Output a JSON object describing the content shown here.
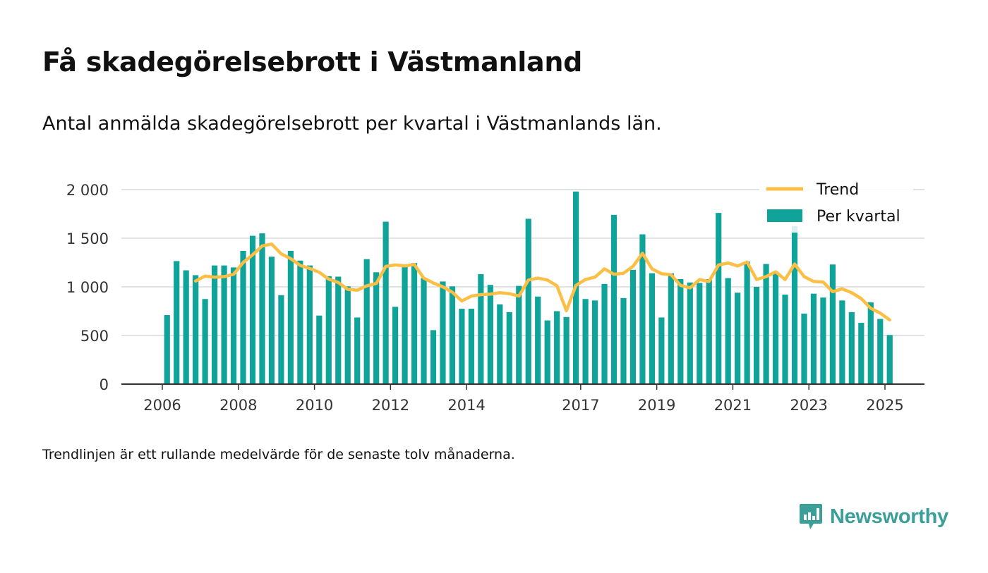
{
  "title": "Få skadegörelsebrott i Västmanland",
  "subtitle": "Antal anmälda skadegörelsebrott per kvartal i Västmanlands län.",
  "note": "Trendlinjen är ett rullande medelvärde för de senaste tolv månaderna.",
  "brand": {
    "name": "Newsworthy",
    "icon": "chart-speech-bubble-icon"
  },
  "colors": {
    "bars": "#0fa39a",
    "trend": "#fbbf45",
    "axis": "#333333",
    "grid": "#d9d9d9",
    "brand": "#3a9f98"
  },
  "chart_data": {
    "type": "bar",
    "xlabel": "",
    "ylabel": "",
    "ylim": [
      0,
      2000
    ],
    "yticks": [
      0,
      500,
      1000,
      1500,
      2000
    ],
    "ytick_labels": [
      "0",
      "500",
      "1 000",
      "1 500",
      "2 000"
    ],
    "xticks": [
      "2006",
      "2008",
      "2010",
      "2012",
      "2014",
      "2017",
      "2019",
      "2021",
      "2023",
      "2025"
    ],
    "grid": true,
    "legend_position": "top-right",
    "categories": [
      "2006 Q1",
      "2006 Q2",
      "2006 Q3",
      "2006 Q4",
      "2007 Q1",
      "2007 Q2",
      "2007 Q3",
      "2007 Q4",
      "2008 Q1",
      "2008 Q2",
      "2008 Q3",
      "2008 Q4",
      "2009 Q1",
      "2009 Q2",
      "2009 Q3",
      "2009 Q4",
      "2010 Q1",
      "2010 Q2",
      "2010 Q3",
      "2010 Q4",
      "2011 Q1",
      "2011 Q2",
      "2011 Q3",
      "2011 Q4",
      "2012 Q1",
      "2012 Q2",
      "2012 Q3",
      "2012 Q4",
      "2013 Q1",
      "2013 Q2",
      "2013 Q3",
      "2013 Q4",
      "2014 Q1",
      "2014 Q2",
      "2014 Q3",
      "2014 Q4",
      "2015 Q1",
      "2015 Q2",
      "2015 Q3",
      "2015 Q4",
      "2016 Q1",
      "2016 Q2",
      "2016 Q3",
      "2016 Q4",
      "2017 Q1",
      "2017 Q2",
      "2017 Q3",
      "2017 Q4",
      "2018 Q1",
      "2018 Q2",
      "2018 Q3",
      "2018 Q4",
      "2019 Q1",
      "2019 Q2",
      "2019 Q3",
      "2019 Q4",
      "2020 Q1",
      "2020 Q2",
      "2020 Q3",
      "2020 Q4",
      "2021 Q1",
      "2021 Q2",
      "2021 Q3",
      "2021 Q4",
      "2022 Q1",
      "2022 Q2",
      "2022 Q3",
      "2022 Q4",
      "2023 Q1",
      "2023 Q2",
      "2023 Q3",
      "2023 Q4",
      "2024 Q1",
      "2024 Q2",
      "2024 Q3",
      "2024 Q4",
      "2025 Q1"
    ],
    "series": [
      {
        "name": "Per kvartal",
        "type": "bar",
        "values": [
          710,
          1265,
          1170,
          1120,
          875,
          1220,
          1220,
          1200,
          1370,
          1525,
          1550,
          1310,
          915,
          1370,
          1270,
          1220,
          705,
          1110,
          1105,
          1005,
          685,
          1285,
          1150,
          1670,
          795,
          1215,
          1245,
          1090,
          555,
          1055,
          1005,
          775,
          775,
          1130,
          1020,
          820,
          740,
          1010,
          1700,
          900,
          655,
          750,
          690,
          1980,
          875,
          860,
          1030,
          1740,
          885,
          1175,
          1540,
          1140,
          685,
          1140,
          1080,
          1045,
          1040,
          1080,
          1760,
          1090,
          940,
          1260,
          1000,
          1235,
          1140,
          920,
          1625,
          725,
          930,
          890,
          1230,
          860,
          740,
          630,
          840,
          670,
          505
        ]
      },
      {
        "name": "Trend",
        "type": "line",
        "values": [
          null,
          null,
          null,
          1060,
          1110,
          1100,
          1105,
          1130,
          1250,
          1330,
          1420,
          1440,
          1340,
          1290,
          1220,
          1190,
          1150,
          1080,
          1045,
          975,
          965,
          1010,
          1035,
          1210,
          1225,
          1215,
          1230,
          1090,
          1040,
          1000,
          945,
          855,
          905,
          920,
          925,
          940,
          930,
          905,
          1070,
          1090,
          1070,
          1010,
          755,
          1015,
          1075,
          1100,
          1185,
          1130,
          1140,
          1210,
          1345,
          1185,
          1135,
          1125,
          1015,
          990,
          1075,
          1055,
          1225,
          1245,
          1215,
          1255,
          1075,
          1105,
          1155,
          1075,
          1235,
          1105,
          1055,
          1050,
          950,
          980,
          940,
          880,
          780,
          730,
          660
        ]
      }
    ]
  }
}
